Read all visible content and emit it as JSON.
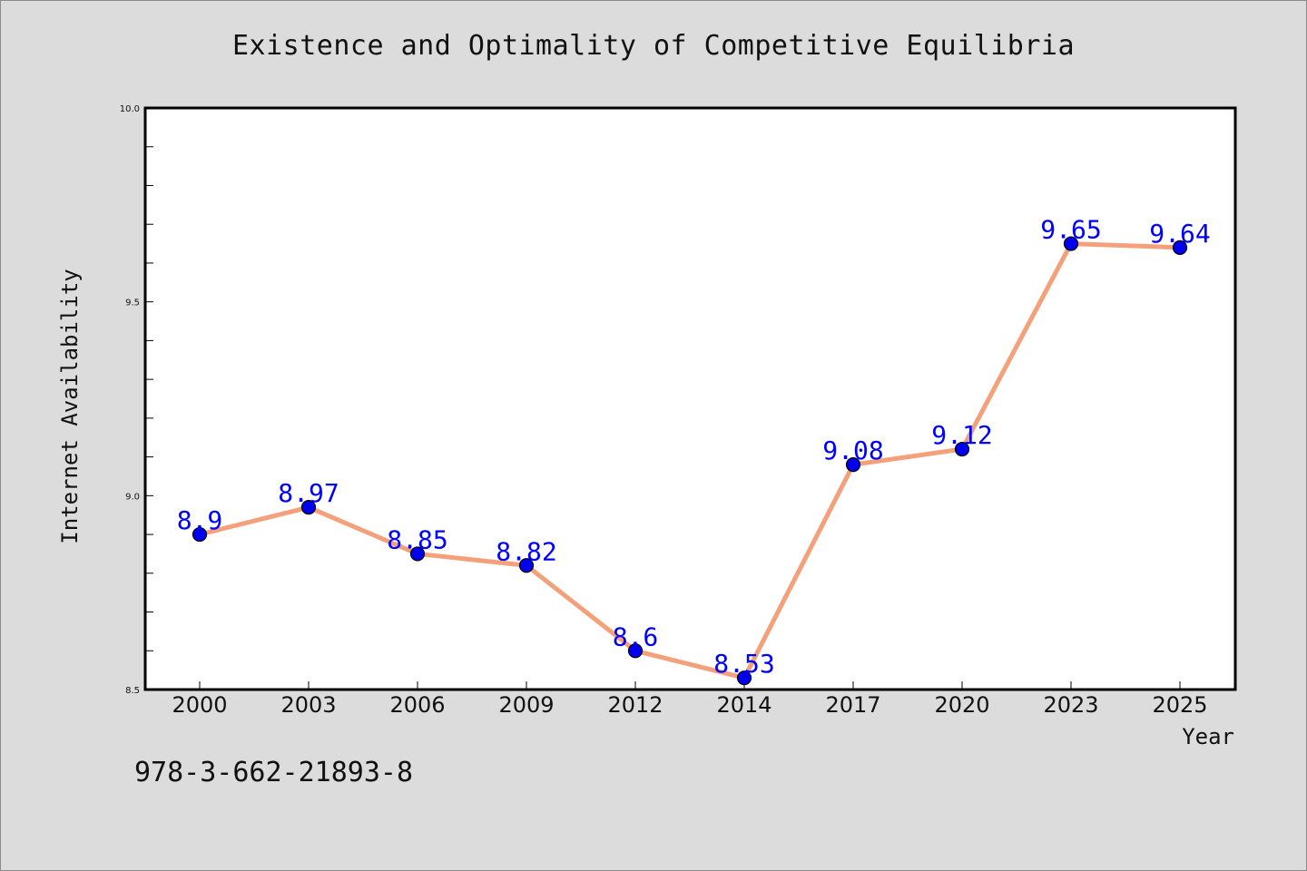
{
  "chart_data": {
    "type": "line",
    "title": "Existence and Optimality of Competitive Equilibria",
    "xlabel": "Year",
    "ylabel": "Internet Availability",
    "categories": [
      "2000",
      "2003",
      "2006",
      "2009",
      "2012",
      "2014",
      "2017",
      "2020",
      "2023",
      "2025"
    ],
    "series": [
      {
        "values": [
          8.9,
          8.97,
          8.85,
          8.82,
          8.6,
          8.53,
          9.08,
          9.12,
          9.65,
          9.64
        ],
        "labels": [
          "8.9",
          "8.97",
          "8.85",
          "8.82",
          "8.6",
          "8.53",
          "9.08",
          "9.12",
          "9.65",
          "9.64"
        ],
        "line_color": "#f4a07a",
        "marker_color": "#0000ee"
      }
    ],
    "ylim": [
      8.5,
      10.0
    ],
    "yticks": [
      "8.5",
      "9.0",
      "9.5",
      "10.0"
    ],
    "grid": false,
    "data_labels": true,
    "label_color": "#0000ff"
  },
  "caption": "978-3-662-21893-8"
}
